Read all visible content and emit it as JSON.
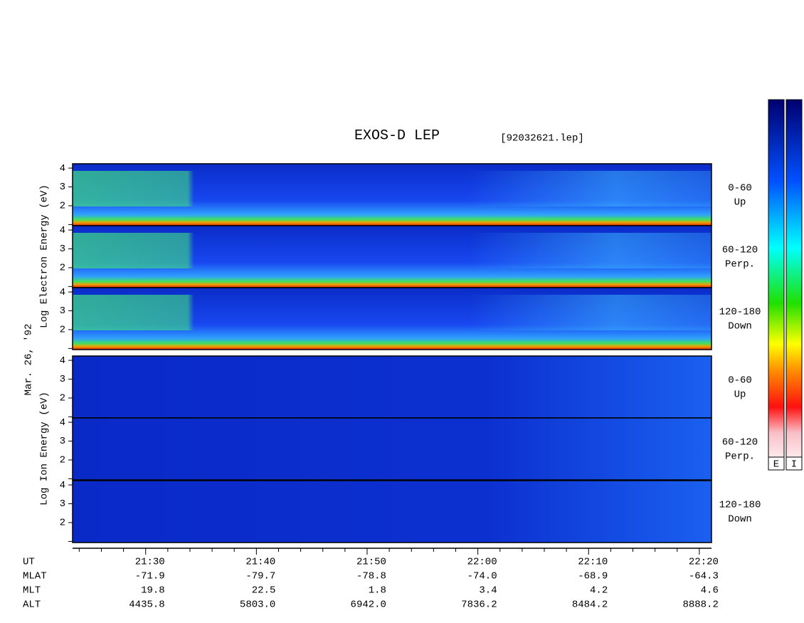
{
  "chart_data": {
    "type": "spectrogram",
    "title": "EXOS-D LEP",
    "file": "[92032621.lep]",
    "electron_axis_label": "Log  Electron  Energy (eV)",
    "date": "Mar. 26, '92",
    "ion_axis_label": "Log  Ion  Energy (eV)",
    "panels": [
      {
        "species": "electron",
        "labels": [
          "0-60",
          "Up"
        ]
      },
      {
        "species": "electron",
        "labels": [
          "60-120",
          "Perp."
        ]
      },
      {
        "species": "electron",
        "labels": [
          "120-180",
          "Down"
        ]
      },
      {
        "species": "ion",
        "labels": [
          "0-60",
          "Up"
        ]
      },
      {
        "species": "ion",
        "labels": [
          "60-120",
          "Perp."
        ]
      },
      {
        "species": "ion",
        "labels": [
          "120-180",
          "Down"
        ]
      }
    ],
    "ylim": [
      0.94,
      4.23
    ],
    "yticks": [
      2,
      3,
      4
    ],
    "minor_yticks": [
      1
    ],
    "xlim": [
      1283.4,
      1341.1
    ],
    "xticks": [
      {
        "value": 1290,
        "label": "21:30"
      },
      {
        "value": 1300,
        "label": "21:40"
      },
      {
        "value": 1310,
        "label": "21:50"
      },
      {
        "value": 1320,
        "label": "22:00"
      },
      {
        "value": 1330,
        "label": "22:10"
      },
      {
        "value": 1340,
        "label": "22:20"
      }
    ],
    "minor_xticks": [
      1284,
      1286,
      1288,
      1292,
      1294,
      1296,
      1298,
      1302,
      1304,
      1306,
      1308,
      1312,
      1314,
      1316,
      1318,
      1322,
      1324,
      1326,
      1328,
      1332,
      1334,
      1336,
      1338
    ],
    "ephemeris": [
      {
        "name": "UT"
      },
      {
        "name": "MLAT",
        "values": [
          "-71.9",
          "-79.7",
          "-78.8",
          "-74.0",
          "-68.9",
          "-64.3"
        ]
      },
      {
        "name": "MLT",
        "values": [
          "19.8",
          "22.5",
          "1.8",
          "3.4",
          "4.2",
          "4.6"
        ]
      },
      {
        "name": "ALT",
        "values": [
          "4435.8",
          "5803.0",
          "6942.0",
          "7836.2",
          "8484.2",
          "8888.2"
        ]
      }
    ],
    "colorbar_labels": [
      "E",
      "I"
    ]
  }
}
